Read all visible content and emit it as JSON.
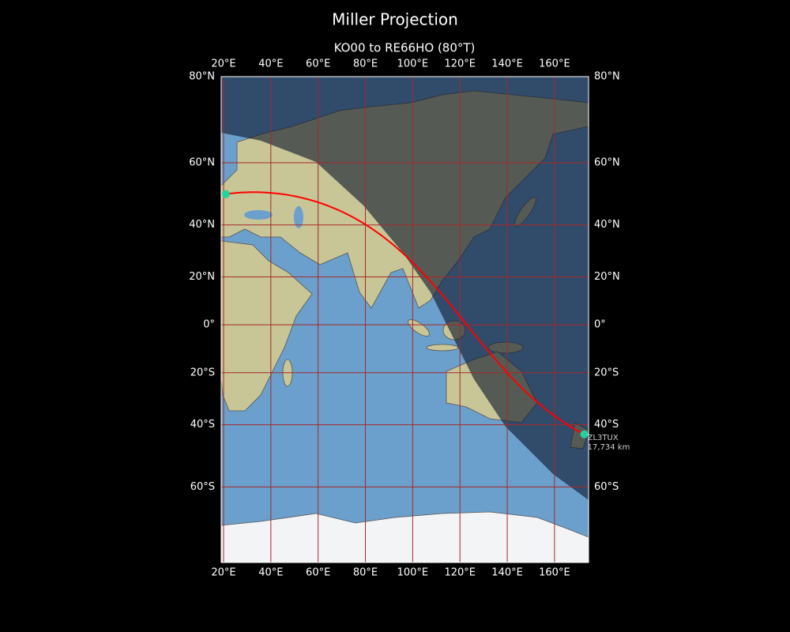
{
  "title": "Miller Projection",
  "map": {
    "subtitle": "KO00 to RE66HO (80°T)",
    "xlim": [
      19,
      174.4
    ],
    "ylim": [
      -78,
      80
    ],
    "xticks": [
      {
        "value": 20,
        "label": "20°E"
      },
      {
        "value": 40,
        "label": "40°E"
      },
      {
        "value": 60,
        "label": "60°E"
      },
      {
        "value": 80,
        "label": "80°E"
      },
      {
        "value": 100,
        "label": "100°E"
      },
      {
        "value": 120,
        "label": "120°E"
      },
      {
        "value": 140,
        "label": "140°E"
      },
      {
        "value": 160,
        "label": "160°E"
      }
    ],
    "yticks": [
      {
        "value": 80,
        "label": "80°N"
      },
      {
        "value": 60,
        "label": "60°N"
      },
      {
        "value": 40,
        "label": "40°N"
      },
      {
        "value": 20,
        "label": "20°N"
      },
      {
        "value": 0,
        "label": "0°"
      },
      {
        "value": -20,
        "label": "20°S"
      },
      {
        "value": -40,
        "label": "40°S"
      },
      {
        "value": -60,
        "label": "60°S"
      }
    ],
    "grid_color": "#a52a2a",
    "path_color": "#ff0000",
    "marker_color": "#22d3a0",
    "start": {
      "lon": 21,
      "lat": 50.5
    },
    "end": {
      "lon": 172.6,
      "lat": -43.4
    },
    "station_label": "ZL3TUX",
    "distance_label": "17,734 km"
  }
}
